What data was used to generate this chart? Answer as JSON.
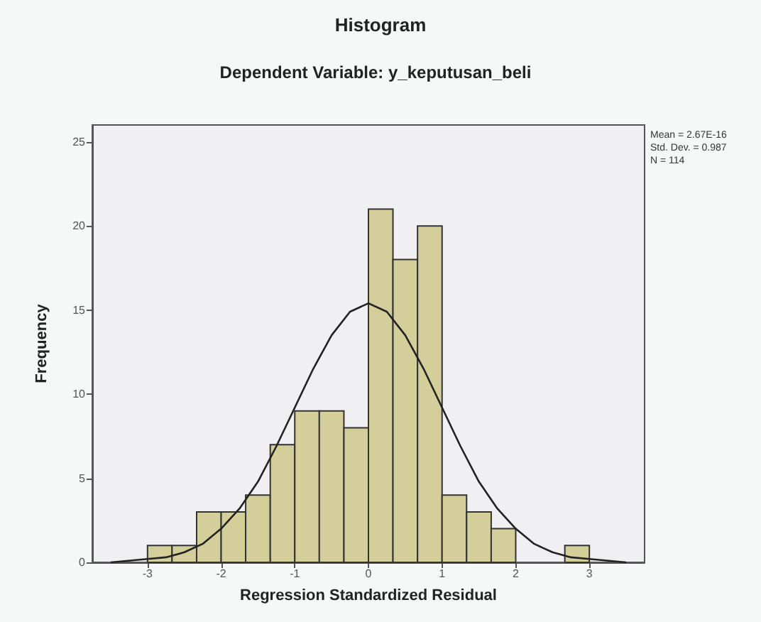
{
  "chart_data": {
    "type": "histogram",
    "title": "Histogram",
    "subtitle": "Dependent Variable: y_keputusan_beli",
    "xlabel": "Regression Standardized Residual",
    "ylabel": "Frequency",
    "bins": [
      -3,
      -2.667,
      -2.333,
      -2,
      -1.667,
      -1.333,
      -1,
      -0.667,
      -0.333,
      0,
      0.333,
      0.667,
      1,
      1.333,
      1.667,
      2,
      2.333,
      2.667,
      3
    ],
    "values": [
      1,
      1,
      3,
      3,
      4,
      7,
      9,
      9,
      8,
      21,
      18,
      20,
      4,
      3,
      2,
      0,
      0,
      1
    ],
    "color": "#d4cf9a",
    "series": [
      {
        "type": "line",
        "color": "#222222",
        "x": [
          -3.5,
          -3,
          -2.75,
          -2.5,
          -2.25,
          -2,
          -1.75,
          -1.5,
          -1.25,
          -1,
          -0.75,
          -0.5,
          -0.25,
          0,
          0.25,
          0.5,
          0.75,
          1,
          1.25,
          1.5,
          1.75,
          2,
          2.25,
          2.5,
          2.75,
          3,
          3.5
        ],
        "values": [
          0,
          0.2,
          0.3,
          0.6,
          1.1,
          2,
          3.2,
          4.8,
          6.9,
          9.2,
          11.5,
          13.5,
          14.9,
          15.4,
          14.9,
          13.5,
          11.5,
          9.2,
          6.9,
          4.8,
          3.2,
          2,
          1.1,
          0.6,
          0.3,
          0.2,
          0
        ]
      }
    ],
    "xlim": [
      -3.75,
      3.75
    ],
    "xticks": [
      -3,
      -2,
      -1,
      0,
      1,
      2,
      3
    ],
    "ylim": [
      0,
      26
    ],
    "yticks": [
      0,
      5,
      10,
      15,
      20,
      25
    ],
    "annotations": [
      "Mean = 2.67E-16",
      "Std. Dev. = 0.987",
      "N = 114"
    ],
    "grid": false
  }
}
